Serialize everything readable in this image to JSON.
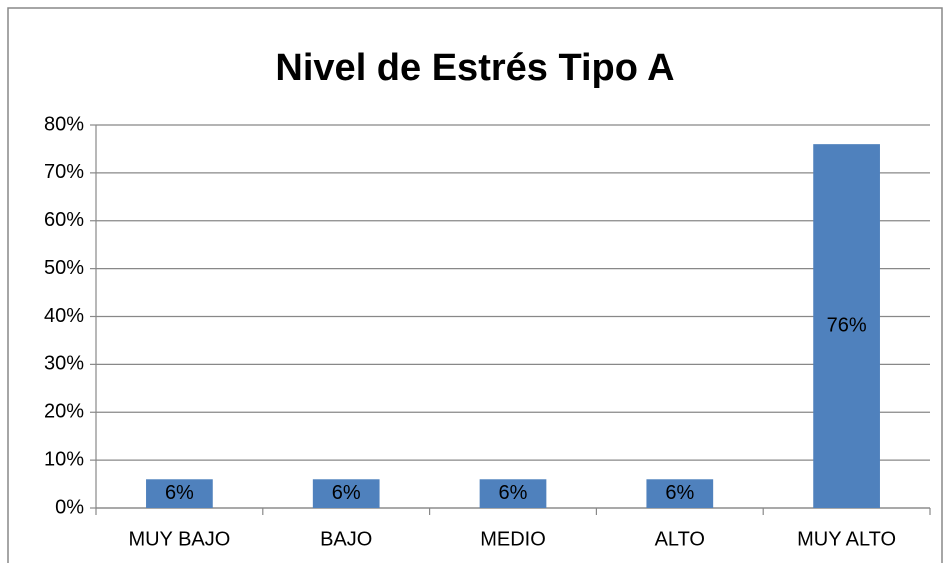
{
  "chart_data": {
    "type": "bar",
    "title": "Nivel de Estrés Tipo A",
    "categories": [
      "MUY BAJO",
      "BAJO",
      "MEDIO",
      "ALTO",
      "MUY ALTO"
    ],
    "values": [
      6,
      6,
      6,
      6,
      76
    ],
    "value_labels": [
      "6%",
      "6%",
      "6%",
      "6%",
      "76%"
    ],
    "color": "#4f81bd",
    "ylim": [
      0,
      80
    ],
    "yticks": [
      {
        "value": 0,
        "label": "0%"
      },
      {
        "value": 10,
        "label": "10%"
      },
      {
        "value": 20,
        "label": "20%"
      },
      {
        "value": 30,
        "label": "30%"
      },
      {
        "value": 40,
        "label": "40%"
      },
      {
        "value": 50,
        "label": "50%"
      },
      {
        "value": 60,
        "label": "60%"
      },
      {
        "value": 70,
        "label": "70%"
      },
      {
        "value": 80,
        "label": "80%"
      }
    ],
    "grid": true
  }
}
